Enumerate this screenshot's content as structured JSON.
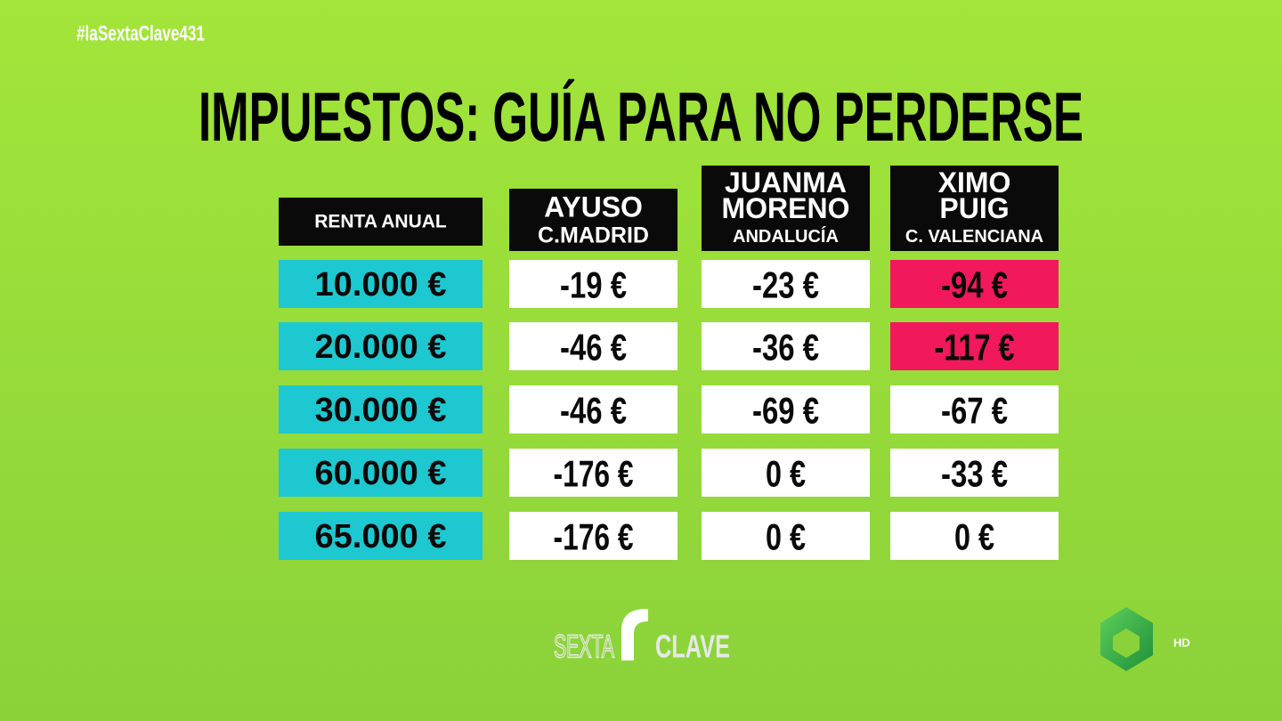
{
  "hashtag": "#laSextaClave431",
  "title": "IMPUESTOS: GUÍA PARA NO PERDERSE",
  "table": {
    "headers": [
      [
        "RENTA ANUAL"
      ],
      [
        "AYUSO",
        "C.MADRID"
      ],
      [
        "JUANMA",
        "MORENO",
        "ANDALUCÍA"
      ],
      [
        "XIMO",
        "PUIG",
        "C. VALENCIANA"
      ]
    ],
    "rows": [
      [
        {
          "text": "10.000 €",
          "color": "#1ec8d0"
        },
        {
          "text": "-19 €",
          "color": "#ffffff"
        },
        {
          "text": "-23 €",
          "color": "#ffffff"
        },
        {
          "text": "-94 €",
          "color": "#f2185c"
        }
      ],
      [
        {
          "text": "20.000 €",
          "color": "#1ec8d0"
        },
        {
          "text": "-46 €",
          "color": "#ffffff"
        },
        {
          "text": "-36 €",
          "color": "#ffffff"
        },
        {
          "text": "-117 €",
          "color": "#f2185c"
        }
      ],
      [
        {
          "text": "30.000 €",
          "color": "#1ec8d0"
        },
        {
          "text": "-46 €",
          "color": "#ffffff"
        },
        {
          "text": "-69 €",
          "color": "#ffffff"
        },
        {
          "text": "-67 €",
          "color": "#ffffff"
        }
      ],
      [
        {
          "text": "60.000 €",
          "color": "#1ec8d0"
        },
        {
          "text": "-176 €",
          "color": "#ffffff"
        },
        {
          "text": "0 €",
          "color": "#ffffff"
        },
        {
          "text": "-33 €",
          "color": "#ffffff"
        }
      ],
      [
        {
          "text": "65.000 €",
          "color": "#1ec8d0"
        },
        {
          "text": "-176 €",
          "color": "#ffffff"
        },
        {
          "text": "0 €",
          "color": "#ffffff"
        },
        {
          "text": "0 €",
          "color": "#ffffff"
        }
      ]
    ]
  },
  "logo": {
    "left": "SEXTA",
    "right": "CLAVE"
  },
  "channel": "HD"
}
